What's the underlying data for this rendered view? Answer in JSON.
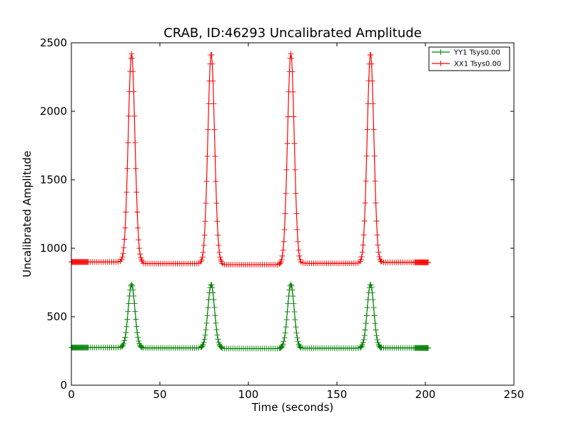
{
  "chart_data": {
    "type": "line",
    "title": "CRAB, ID:46293 Uncalibrated Amplitude",
    "xlabel": "Time (seconds)",
    "ylabel": "Uncalibrated Amplitude",
    "xlim": [
      0,
      250
    ],
    "ylim": [
      0,
      2500
    ],
    "xticks": [
      0,
      50,
      100,
      150,
      200,
      250
    ],
    "yticks": [
      0,
      500,
      1000,
      1500,
      2000,
      2500
    ],
    "xtick_labels": [
      "0",
      "50",
      "100",
      "150",
      "200",
      "250"
    ],
    "ytick_labels": [
      "0",
      "500",
      "1000",
      "1500",
      "2000",
      "2500"
    ],
    "grid": false,
    "legend_position": "top-right",
    "marker": "plus",
    "series": [
      {
        "name": "YY1 Tsys0.00",
        "color": "#008000",
        "x_start": 0,
        "x_end": 202,
        "x_step": 0.4,
        "baseline": 272,
        "baseline_segments": [
          [
            0,
            30,
            275
          ],
          [
            40,
            85,
            272
          ],
          [
            85,
            130,
            268
          ],
          [
            130,
            175,
            270
          ],
          [
            175,
            202,
            272
          ]
        ],
        "peaks": [
          {
            "x": 34.0,
            "y": 735
          },
          {
            "x": 79.0,
            "y": 735
          },
          {
            "x": 124.0,
            "y": 735
          },
          {
            "x": 169.0,
            "y": 735
          }
        ],
        "peak_width": 1.9,
        "dense_ranges": [
          [
            0,
            10
          ],
          [
            194,
            202
          ]
        ]
      },
      {
        "name": "XX1 Tsys0.00",
        "color": "#ff0000",
        "x_start": 0,
        "x_end": 202,
        "x_step": 0.4,
        "baseline": 895,
        "baseline_segments": [
          [
            0,
            30,
            900
          ],
          [
            40,
            85,
            888
          ],
          [
            85,
            130,
            880
          ],
          [
            130,
            175,
            890
          ],
          [
            175,
            202,
            897
          ]
        ],
        "peaks": [
          {
            "x": 34.0,
            "y": 2420
          },
          {
            "x": 79.0,
            "y": 2420
          },
          {
            "x": 124.0,
            "y": 2420
          },
          {
            "x": 169.0,
            "y": 2420
          }
        ],
        "peak_width": 1.9,
        "dense_ranges": [
          [
            0,
            10
          ],
          [
            194,
            202
          ]
        ]
      }
    ]
  }
}
